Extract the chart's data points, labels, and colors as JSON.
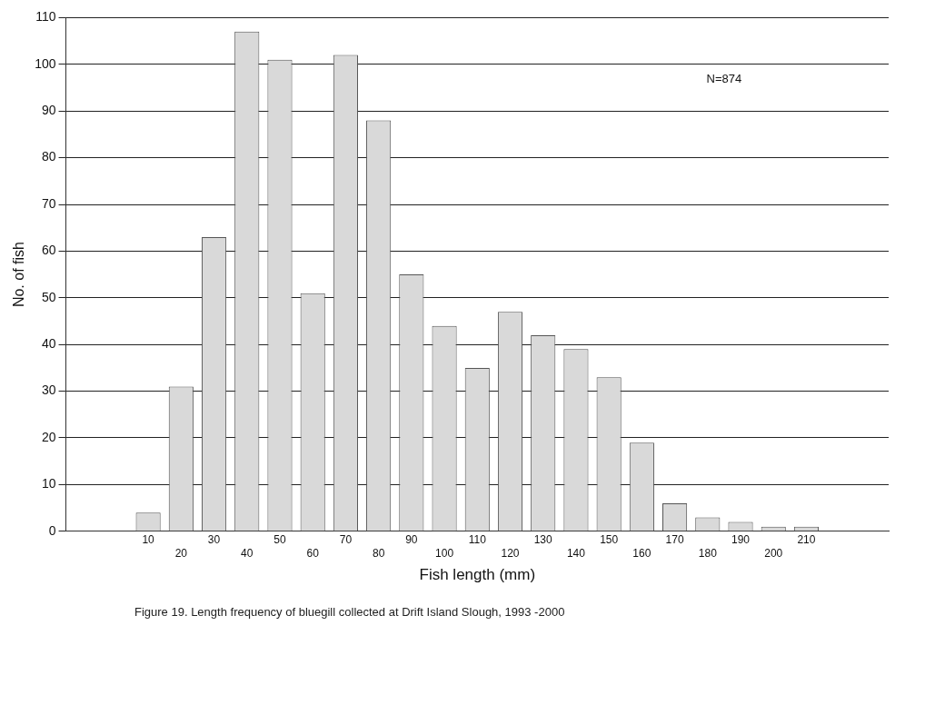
{
  "chart_data": {
    "type": "bar",
    "xlabel": "Fish length (mm)",
    "ylabel": "No. of fish",
    "categories": [
      null,
      null,
      "10",
      "20",
      "30",
      "40",
      "50",
      "60",
      "70",
      "80",
      "90",
      "100",
      "110",
      "120",
      "130",
      "140",
      "150",
      "160",
      "170",
      "180",
      "190",
      "200",
      "210",
      null,
      null
    ],
    "values": [
      null,
      null,
      4,
      31,
      63,
      107,
      101,
      51,
      102,
      88,
      55,
      44,
      35,
      47,
      42,
      39,
      33,
      19,
      6,
      3,
      2,
      1,
      1,
      null,
      null
    ],
    "color": "#d9d9d9",
    "ylim": [
      0,
      110
    ],
    "yticks": [
      0,
      10,
      20,
      30,
      40,
      50,
      60,
      70,
      80,
      90,
      100,
      110
    ],
    "grid": "y",
    "annotations": [
      "N=874",
      "Figure 19.  Length frequency of bluegill collected at Drift Island Slough, 1993 -2000"
    ]
  }
}
